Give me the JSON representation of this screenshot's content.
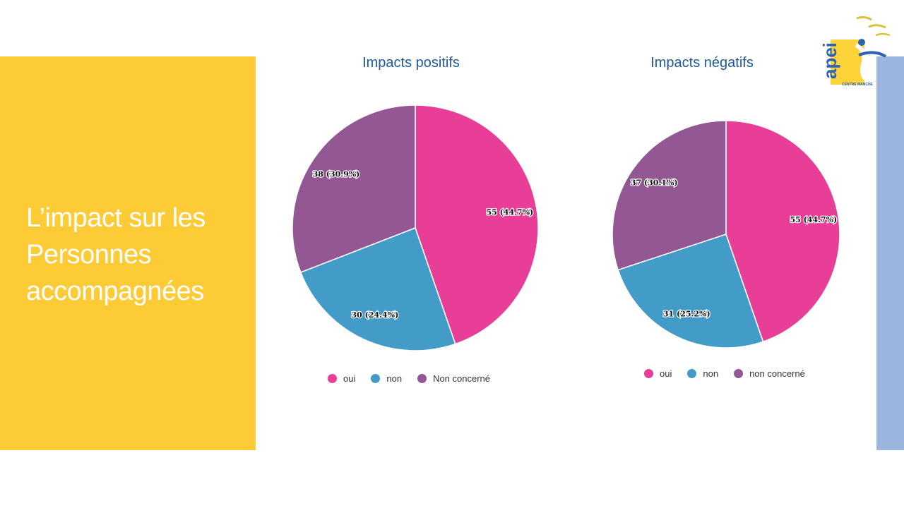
{
  "slide": {
    "title": "L’impact sur les\nPersonnes\naccompagnées"
  },
  "logo": {
    "text_main": "apei",
    "text_sub": "CENTRE MANCHE"
  },
  "colors": {
    "yellow_panel": "#fdcb36",
    "blue_bar": "#9bb4e0",
    "title_blue": "#1f5a9a",
    "oui": "#e83e98",
    "non": "#439cc8",
    "non_concerne": "#935894"
  },
  "chart_data": [
    {
      "type": "pie",
      "title": "Impacts positifs",
      "categories": [
        "oui",
        "non",
        "Non concerné"
      ],
      "values": [
        55,
        30,
        38
      ],
      "data_labels": [
        "55 (44.7%)",
        "30 (24.4%)",
        "38 (30.9%)"
      ],
      "colors": [
        "#e83e98",
        "#439cc8",
        "#935894"
      ],
      "start_angle": "top, clockwise",
      "legend": "bottom"
    },
    {
      "type": "pie",
      "title": "Impacts négatifs",
      "categories": [
        "oui",
        "non",
        "non concerné"
      ],
      "values": [
        55,
        31,
        37
      ],
      "data_labels": [
        "55 (44.7%)",
        "31 (25.2%)",
        "37 (30.1%)"
      ],
      "colors": [
        "#e83e98",
        "#439cc8",
        "#935894"
      ],
      "start_angle": "top, clockwise",
      "legend": "bottom"
    }
  ]
}
